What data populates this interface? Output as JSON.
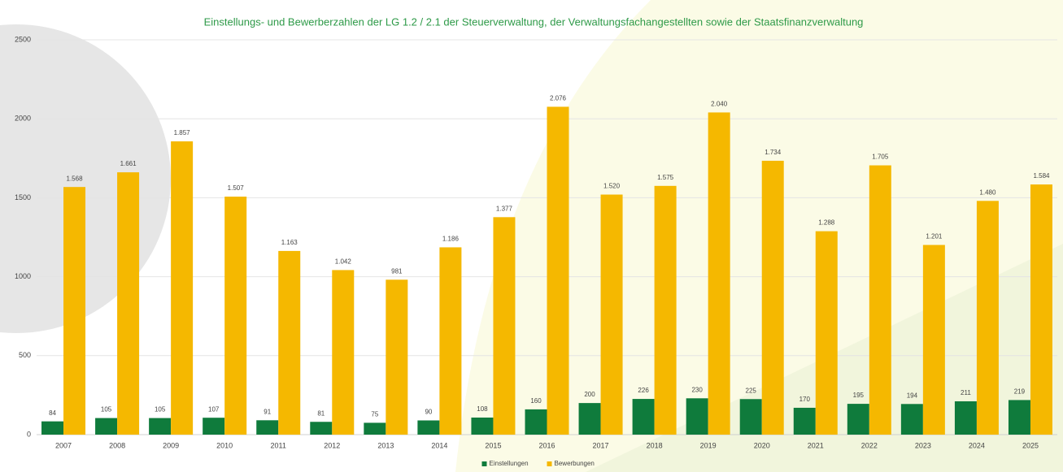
{
  "chart_data": {
    "type": "bar",
    "title": "Einstellungs- und Bewerberzahlen der LG 1.2 / 2.1 der Steuerverwaltung, der Verwaltungsfachangestellten sowie der Staatsfinanzverwaltung",
    "categories": [
      "2007",
      "2008",
      "2009",
      "2010",
      "2011",
      "2012",
      "2013",
      "2014",
      "2015",
      "2016",
      "2017",
      "2018",
      "2019",
      "2020",
      "2021",
      "2022",
      "2023",
      "2024",
      "2025"
    ],
    "series": [
      {
        "name": "Einstellungen",
        "color": "#0f7b3c",
        "values": [
          84,
          105,
          105,
          107,
          91,
          81,
          75,
          90,
          108,
          160,
          200,
          226,
          230,
          225,
          170,
          195,
          194,
          211,
          219
        ]
      },
      {
        "name": "Bewerbungen",
        "color": "#f5b800",
        "values": [
          1568,
          1661,
          1857,
          1507,
          1163,
          1042,
          981,
          1186,
          1377,
          2076,
          1520,
          1575,
          2040,
          1734,
          1288,
          1705,
          1201,
          1480,
          1584
        ],
        "value_labels": [
          "1.568",
          "1.661",
          "1.857",
          "1.507",
          "1.163",
          "1.042",
          "981",
          "1.186",
          "1.377",
          "2.076",
          "1.520",
          "1.575",
          "2.040",
          "1.734",
          "1.288",
          "1.705",
          "1.201",
          "1.480",
          "1.584"
        ]
      }
    ],
    "ylim": [
      0,
      2500
    ],
    "yticks": [
      0,
      500,
      1000,
      1500,
      2000,
      2500
    ],
    "grid": true,
    "legend": "bottom"
  }
}
